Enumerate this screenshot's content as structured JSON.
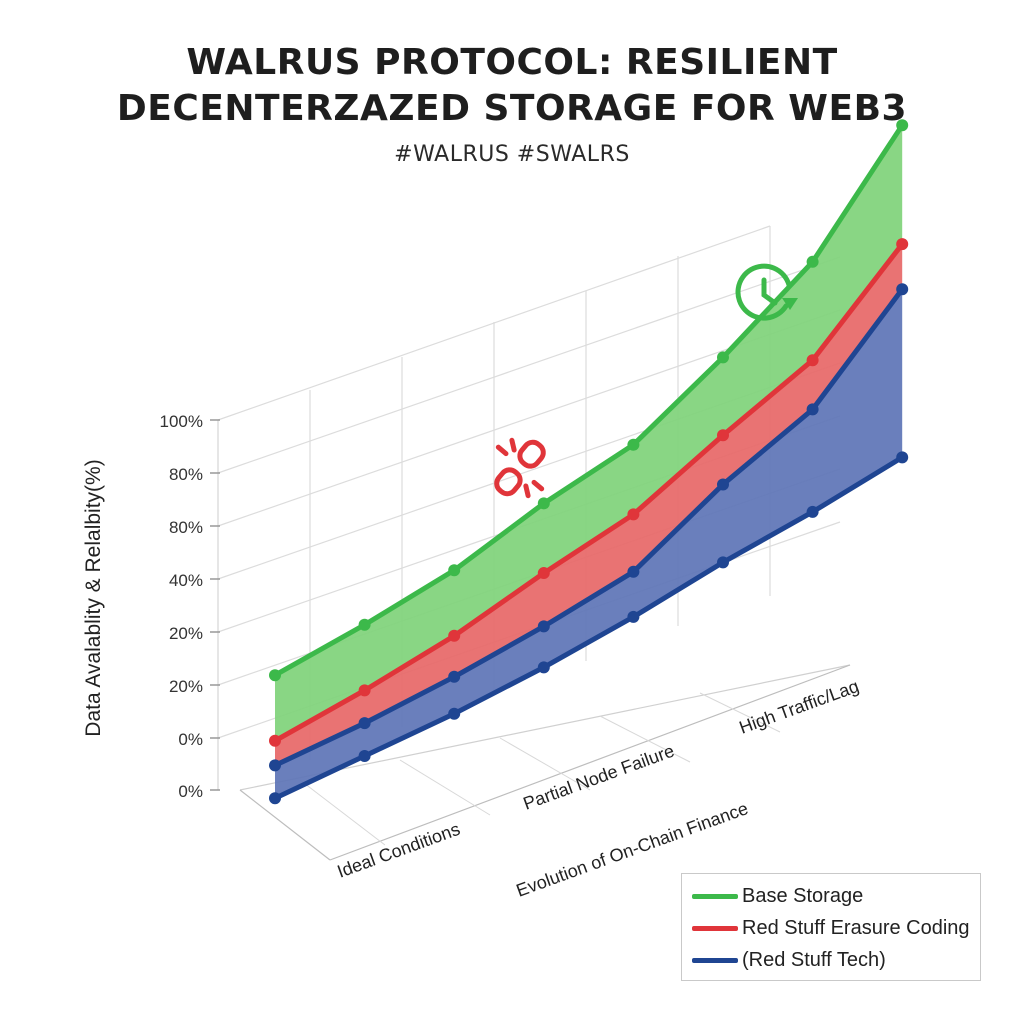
{
  "header": {
    "title_line1": "WALRUS PROTOCOL: RESILIENT",
    "title_line2": "DECENTERZAZED STORAGE FOR WEB3",
    "hashtags": "#WALRUS #SWALRS"
  },
  "icons": {
    "top_right": "clock-refresh-icon",
    "middle": "broken-link-icon"
  },
  "chart_data": {
    "type": "area",
    "title": "WALRUS PROTOCOL: RESILIENT DECENTERZAZED STORAGE FOR WEB3",
    "ylabel": "Data Avalablity & Relalbity(%)",
    "y_tick_labels": [
      "100%",
      "80%",
      "80%",
      "40%",
      "20%",
      "20%",
      "0%",
      "0%"
    ],
    "x_tick_labels": [
      "Ideal Conditions",
      "Partial Node Failure",
      "High Traffic/Lag"
    ],
    "x_axis_label": "Evolution of On-Chain Finance",
    "x": [
      1,
      2,
      3,
      4,
      5,
      6,
      7,
      8
    ],
    "ylim": [
      0,
      100
    ],
    "grid": true,
    "legend_position": "bottom-right",
    "series": [
      {
        "name": "Base Storage",
        "color": "#3cb94a",
        "fill": "#7fd37a",
        "values": [
          28,
          32,
          37,
          45,
          51,
          64,
          79,
          104
        ]
      },
      {
        "name": "Red Stuff Erasure Coding",
        "color": "#e0353a",
        "fill": "#e76767",
        "values": [
          12,
          16,
          21,
          28,
          34,
          45,
          55,
          75
        ]
      },
      {
        "name": "(Red Stuff Tech)",
        "color": "#1f4592",
        "fill": "#5d74b6",
        "values": [
          6,
          8,
          11,
          15,
          20,
          33,
          43,
          64
        ]
      },
      {
        "name": "",
        "color": "#1f4592",
        "fill": "#5d74b6",
        "values": [
          -2,
          0,
          2,
          5,
          9,
          14,
          18,
          23
        ]
      }
    ]
  }
}
